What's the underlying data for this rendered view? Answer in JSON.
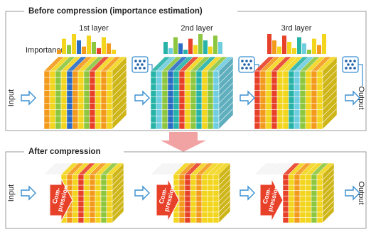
{
  "before": {
    "title": "Before compression (importance estimation)",
    "layers": [
      "1st layer",
      "2nd layer",
      "3rd layer"
    ],
    "importance_label": "Importance",
    "input": "Input",
    "output": "Output"
  },
  "after": {
    "title": "After compression",
    "input": "Input",
    "output": "Output",
    "compression": [
      "Com-",
      "pression"
    ]
  }
}
